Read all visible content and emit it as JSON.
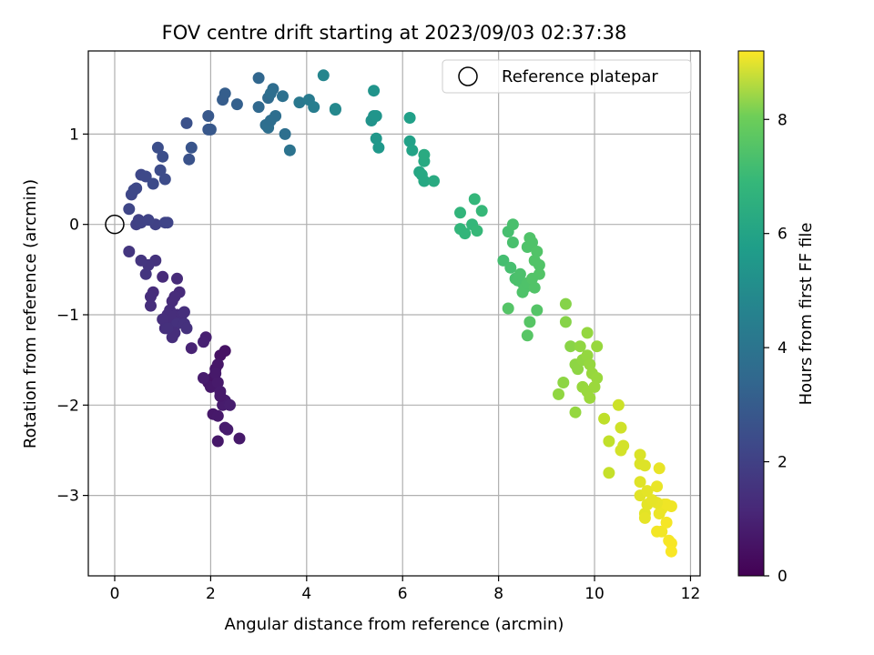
{
  "chart_data": {
    "type": "scatter",
    "title": "FOV centre drift starting at 2023/09/03 02:37:38",
    "xlabel": "Angular distance from reference (arcmin)",
    "ylabel": "Rotation from reference (arcmin)",
    "xlim": [
      -0.55,
      12.2
    ],
    "ylim": [
      -3.89,
      1.92
    ],
    "xticks": [
      0,
      2,
      4,
      6,
      8,
      10,
      12
    ],
    "yticks": [
      -3,
      -2,
      -1,
      0,
      1
    ],
    "grid": true,
    "legend": {
      "placement": "top-right",
      "entries": [
        "Reference platepar"
      ]
    },
    "reference_point": {
      "x": 0,
      "y": 0
    },
    "colorbar": {
      "label": "Hours from first FF file",
      "range": [
        0,
        9.2
      ],
      "ticks": [
        0,
        2,
        4,
        6,
        8
      ],
      "colormap": "viridis"
    },
    "tick_format": {
      "minus": "−"
    },
    "series": [
      {
        "points": [
          [
            2.2,
            -1.45
          ],
          [
            2.3,
            -1.4
          ],
          [
            2.05,
            -1.7
          ],
          [
            1.95,
            -1.75
          ],
          [
            2.1,
            -1.6
          ],
          [
            2.15,
            -1.55
          ],
          [
            2.0,
            -1.8
          ],
          [
            2.1,
            -1.65
          ],
          [
            2.15,
            -1.75
          ],
          [
            2.2,
            -1.85
          ],
          [
            2.3,
            -1.95
          ],
          [
            2.25,
            -2.0
          ],
          [
            2.4,
            -2.0
          ],
          [
            2.2,
            -1.9
          ],
          [
            2.05,
            -2.1
          ],
          [
            2.15,
            -2.12
          ],
          [
            2.3,
            -2.25
          ],
          [
            2.35,
            -2.27
          ],
          [
            2.15,
            -2.4
          ],
          [
            2.6,
            -2.37
          ],
          [
            1.85,
            -1.7
          ],
          [
            1.9,
            -1.25
          ],
          [
            1.85,
            -1.3
          ],
          [
            1.6,
            -1.37
          ],
          [
            1.0,
            -0.58
          ],
          [
            1.3,
            -0.6
          ],
          [
            1.35,
            -0.75
          ],
          [
            1.25,
            -0.8
          ],
          [
            1.2,
            -0.85
          ],
          [
            1.15,
            -0.95
          ],
          [
            1.1,
            -1.0
          ],
          [
            1.2,
            -1.05
          ],
          [
            1.3,
            -1.0
          ],
          [
            1.4,
            -1.0
          ],
          [
            1.45,
            -0.97
          ],
          [
            1.0,
            -1.05
          ],
          [
            1.05,
            -1.15
          ],
          [
            1.2,
            -1.15
          ],
          [
            1.3,
            -1.1
          ],
          [
            1.45,
            -1.1
          ],
          [
            1.5,
            -1.15
          ],
          [
            1.25,
            -1.2
          ],
          [
            1.2,
            -1.25
          ],
          [
            0.8,
            -0.75
          ],
          [
            0.75,
            -0.8
          ],
          [
            0.85,
            -0.4
          ],
          [
            0.7,
            -0.45
          ],
          [
            0.65,
            -0.55
          ],
          [
            0.55,
            -0.4
          ],
          [
            0.3,
            -0.3
          ],
          [
            0.75,
            -0.9
          ],
          [
            1.1,
            -1.15
          ],
          [
            0.85,
            0.0
          ],
          [
            0.45,
            0.0
          ],
          [
            0.5,
            0.05
          ],
          [
            0.55,
            0.02
          ],
          [
            0.7,
            0.05
          ],
          [
            1.05,
            0.02
          ],
          [
            1.1,
            0.02
          ],
          [
            0.3,
            0.17
          ],
          [
            0.35,
            0.33
          ],
          [
            0.45,
            0.4
          ],
          [
            0.55,
            0.55
          ],
          [
            0.65,
            0.53
          ],
          [
            0.8,
            0.45
          ],
          [
            0.95,
            0.6
          ],
          [
            1.05,
            0.5
          ],
          [
            0.9,
            0.85
          ],
          [
            1.0,
            0.75
          ],
          [
            0.4,
            0.38
          ],
          [
            1.5,
            1.12
          ],
          [
            1.55,
            0.72
          ],
          [
            1.6,
            0.85
          ],
          [
            1.95,
            1.05
          ],
          [
            1.95,
            1.2
          ],
          [
            2.0,
            1.05
          ],
          [
            2.25,
            1.38
          ],
          [
            2.3,
            1.45
          ],
          [
            2.55,
            1.33
          ],
          [
            3.0,
            1.3
          ],
          [
            3.0,
            1.62
          ],
          [
            3.15,
            1.1
          ],
          [
            3.2,
            1.07
          ],
          [
            3.25,
            1.15
          ],
          [
            3.2,
            1.4
          ],
          [
            3.3,
            1.5
          ],
          [
            3.25,
            1.45
          ],
          [
            3.5,
            1.42
          ],
          [
            3.55,
            1.0
          ],
          [
            3.65,
            0.82
          ],
          [
            3.85,
            1.35
          ],
          [
            4.05,
            1.38
          ],
          [
            4.15,
            1.3
          ],
          [
            4.35,
            1.65
          ],
          [
            4.6,
            1.28
          ],
          [
            4.6,
            1.27
          ],
          [
            3.35,
            1.2
          ],
          [
            5.35,
            1.15
          ],
          [
            5.4,
            1.2
          ],
          [
            5.4,
            1.48
          ],
          [
            5.45,
            1.2
          ],
          [
            5.45,
            0.95
          ],
          [
            5.5,
            0.85
          ],
          [
            6.15,
            1.18
          ],
          [
            6.15,
            0.92
          ],
          [
            6.2,
            0.82
          ],
          [
            6.35,
            0.58
          ],
          [
            6.4,
            0.55
          ],
          [
            6.45,
            0.48
          ],
          [
            6.45,
            0.7
          ],
          [
            6.45,
            0.77
          ],
          [
            6.65,
            0.48
          ],
          [
            7.2,
            0.13
          ],
          [
            7.2,
            -0.05
          ],
          [
            7.3,
            -0.1
          ],
          [
            7.45,
            0.0
          ],
          [
            7.5,
            0.28
          ],
          [
            7.55,
            -0.07
          ],
          [
            7.65,
            0.15
          ],
          [
            8.1,
            -0.4
          ],
          [
            8.2,
            -0.08
          ],
          [
            8.25,
            -0.48
          ],
          [
            8.3,
            0.0
          ],
          [
            8.3,
            -0.2
          ],
          [
            8.35,
            -0.6
          ],
          [
            8.4,
            -0.62
          ],
          [
            8.45,
            -0.55
          ],
          [
            8.5,
            -0.65
          ],
          [
            8.5,
            -0.75
          ],
          [
            8.55,
            -0.7
          ],
          [
            8.6,
            -0.25
          ],
          [
            8.6,
            -0.65
          ],
          [
            8.65,
            -0.15
          ],
          [
            8.7,
            -0.2
          ],
          [
            8.75,
            -0.7
          ],
          [
            8.8,
            -0.3
          ],
          [
            8.85,
            -0.45
          ],
          [
            8.85,
            -0.55
          ],
          [
            8.2,
            -0.93
          ],
          [
            8.8,
            -0.95
          ],
          [
            8.65,
            -1.08
          ],
          [
            8.6,
            -1.23
          ],
          [
            8.75,
            -0.4
          ],
          [
            8.7,
            -0.6
          ],
          [
            9.4,
            -0.88
          ],
          [
            9.4,
            -1.08
          ],
          [
            9.5,
            -1.35
          ],
          [
            9.6,
            -1.55
          ],
          [
            9.65,
            -1.6
          ],
          [
            9.7,
            -1.35
          ],
          [
            9.75,
            -1.5
          ],
          [
            9.85,
            -1.2
          ],
          [
            9.85,
            -1.45
          ],
          [
            9.9,
            -1.55
          ],
          [
            9.95,
            -1.65
          ],
          [
            10.05,
            -1.35
          ],
          [
            10.05,
            -1.7
          ],
          [
            9.35,
            -1.75
          ],
          [
            9.25,
            -1.88
          ],
          [
            9.6,
            -2.08
          ],
          [
            9.75,
            -1.8
          ],
          [
            9.85,
            -1.85
          ],
          [
            10.0,
            -1.8
          ],
          [
            9.9,
            -1.92
          ],
          [
            10.2,
            -2.15
          ],
          [
            10.3,
            -2.4
          ],
          [
            10.3,
            -2.75
          ],
          [
            10.5,
            -2.0
          ],
          [
            10.55,
            -2.25
          ],
          [
            10.55,
            -2.5
          ],
          [
            10.6,
            -2.45
          ],
          [
            10.95,
            -2.55
          ],
          [
            10.95,
            -2.65
          ],
          [
            11.05,
            -2.67
          ],
          [
            10.95,
            -2.85
          ],
          [
            10.95,
            -3.0
          ],
          [
            11.05,
            -3.2
          ],
          [
            11.1,
            -2.95
          ],
          [
            11.1,
            -3.1
          ],
          [
            11.05,
            -3.25
          ],
          [
            11.35,
            -2.7
          ],
          [
            11.3,
            -2.9
          ],
          [
            11.35,
            -3.2
          ],
          [
            11.4,
            -3.15
          ],
          [
            11.45,
            -3.1
          ],
          [
            11.5,
            -3.1
          ],
          [
            11.6,
            -3.12
          ],
          [
            11.3,
            -3.4
          ],
          [
            11.4,
            -3.4
          ],
          [
            11.5,
            -3.3
          ],
          [
            11.55,
            -3.5
          ],
          [
            11.6,
            -3.53
          ],
          [
            11.6,
            -3.62
          ],
          [
            11.3,
            -3.08
          ],
          [
            11.2,
            -3.05
          ]
        ],
        "hours": [
          0.45,
          0.45,
          0.5,
          0.52,
          0.55,
          0.57,
          0.6,
          0.62,
          0.65,
          0.68,
          0.7,
          0.72,
          0.75,
          0.65,
          0.6,
          0.62,
          0.7,
          0.72,
          0.6,
          0.62,
          0.7,
          0.8,
          0.85,
          0.9,
          1.1,
          1.1,
          1.12,
          1.15,
          1.15,
          1.18,
          1.2,
          1.2,
          1.22,
          1.22,
          1.25,
          1.25,
          1.25,
          1.28,
          1.3,
          1.3,
          1.3,
          1.2,
          1.22,
          1.15,
          1.18,
          1.35,
          1.4,
          1.42,
          1.42,
          1.45,
          1.2,
          1.28,
          1.8,
          1.78,
          1.8,
          1.82,
          1.85,
          1.9,
          1.9,
          1.95,
          1.98,
          2.0,
          2.02,
          2.05,
          2.1,
          2.15,
          2.15,
          2.2,
          2.2,
          2.0,
          2.3,
          2.35,
          2.4,
          2.5,
          2.55,
          2.55,
          2.7,
          2.75,
          2.8,
          3.1,
          3.05,
          3.3,
          3.35,
          3.3,
          3.2,
          3.25,
          3.3,
          3.4,
          3.35,
          3.5,
          3.7,
          3.8,
          3.9,
          4.2,
          4.3,
          4.3,
          3.3,
          4.7,
          4.72,
          4.75,
          4.78,
          4.85,
          4.9,
          5.2,
          5.25,
          5.3,
          5.45,
          5.5,
          5.5,
          5.55,
          5.6,
          5.6,
          6.0,
          6.05,
          6.05,
          6.1,
          6.1,
          6.15,
          6.15,
          6.4,
          6.45,
          6.45,
          6.5,
          6.5,
          6.5,
          6.55,
          6.55,
          6.55,
          6.6,
          6.6,
          6.6,
          6.6,
          6.62,
          6.62,
          6.65,
          6.65,
          6.65,
          6.68,
          6.7,
          6.7,
          6.75,
          6.75,
          6.65,
          6.65,
          7.5,
          7.5,
          7.55,
          7.6,
          7.62,
          7.65,
          7.65,
          7.7,
          7.7,
          7.72,
          7.75,
          7.75,
          7.78,
          7.6,
          7.65,
          7.7,
          7.75,
          7.78,
          7.8,
          7.8,
          8.3,
          8.35,
          8.4,
          8.5,
          8.55,
          8.6,
          8.6,
          8.7,
          8.72,
          8.75,
          8.78,
          8.8,
          8.82,
          8.85,
          8.85,
          8.88,
          8.9,
          8.92,
          8.95,
          8.95,
          8.95,
          9.0,
          9.0,
          9.05,
          9.05,
          9.08,
          9.1,
          9.12,
          9.15,
          8.9,
          8.88
        ]
      }
    ]
  }
}
